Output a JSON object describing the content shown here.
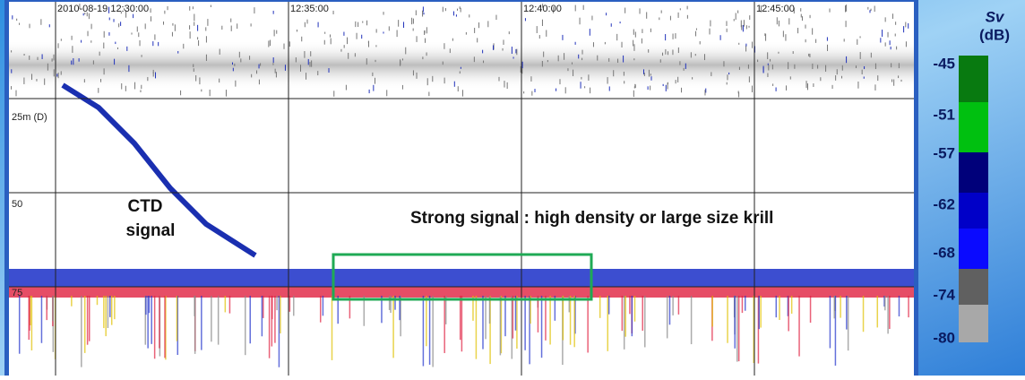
{
  "echogram": {
    "time_labels": [
      "2010-08-19 12:30:00",
      "12:35:00",
      "12:40:00",
      "12:45:00"
    ],
    "depth_labels": [
      "25m (D)",
      "50",
      "75"
    ],
    "annotations": {
      "ctd": [
        "CTD",
        "signal"
      ],
      "strong": "Strong signal : high density or large size krill"
    },
    "colorbar": {
      "title": "Sv",
      "unit": "(dB)",
      "labels": [
        -45,
        -51,
        -57,
        -62,
        -68,
        -74,
        -80
      ]
    }
  }
}
